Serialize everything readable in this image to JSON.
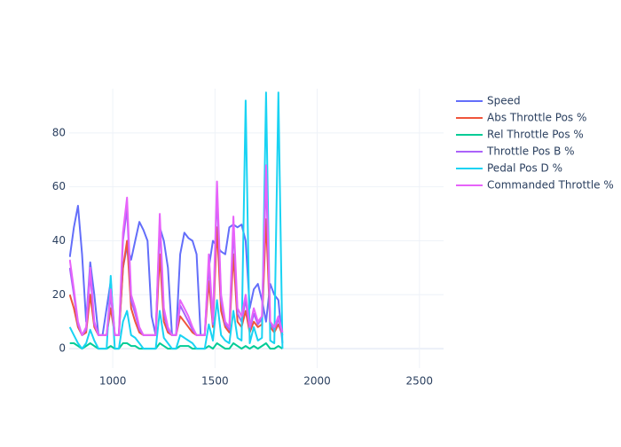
{
  "chart_data": {
    "type": "line",
    "x": [
      790,
      810,
      830,
      850,
      870,
      890,
      910,
      930,
      950,
      970,
      990,
      1010,
      1030,
      1050,
      1070,
      1090,
      1110,
      1130,
      1150,
      1170,
      1190,
      1210,
      1230,
      1250,
      1270,
      1290,
      1310,
      1330,
      1350,
      1370,
      1390,
      1410,
      1430,
      1450,
      1470,
      1490,
      1510,
      1530,
      1550,
      1570,
      1590,
      1610,
      1630,
      1650,
      1670,
      1690,
      1710,
      1730,
      1750,
      1770,
      1790,
      1810,
      1830
    ],
    "series": [
      {
        "name": "Speed",
        "color": "#636efa",
        "values": [
          34,
          45,
          53,
          35,
          10,
          32,
          20,
          5,
          5,
          15,
          25,
          5,
          5,
          30,
          38,
          33,
          40,
          47,
          44,
          40,
          12,
          5,
          45,
          40,
          30,
          5,
          5,
          35,
          43,
          41,
          40,
          35,
          5,
          5,
          30,
          40,
          38,
          36,
          35,
          45,
          46,
          45,
          46,
          40,
          15,
          22,
          24,
          18,
          10,
          24,
          20,
          18,
          2
        ]
      },
      {
        "name": "Abs Throttle Pos %",
        "color": "#ef553b",
        "values": [
          20,
          15,
          8,
          5,
          6,
          20,
          8,
          5,
          5,
          5,
          15,
          5,
          5,
          30,
          40,
          15,
          10,
          6,
          5,
          5,
          5,
          5,
          35,
          10,
          6,
          5,
          5,
          12,
          10,
          8,
          6,
          5,
          5,
          5,
          25,
          8,
          45,
          14,
          8,
          6,
          35,
          10,
          8,
          14,
          6,
          10,
          8,
          9,
          48,
          8,
          6,
          9,
          5
        ]
      },
      {
        "name": "Rel Throttle Pos %",
        "color": "#00cc96",
        "values": [
          2,
          2,
          1,
          0,
          1,
          2,
          1,
          0,
          0,
          0,
          1,
          0,
          0,
          2,
          2,
          1,
          1,
          0,
          0,
          0,
          0,
          0,
          2,
          1,
          0,
          0,
          0,
          1,
          1,
          1,
          0,
          0,
          0,
          0,
          1,
          0,
          2,
          1,
          0,
          0,
          2,
          1,
          0,
          1,
          0,
          1,
          0,
          1,
          2,
          0,
          0,
          1,
          0
        ]
      },
      {
        "name": "Throttle Pos B %",
        "color": "#ab63fa",
        "values": [
          30,
          20,
          9,
          5,
          7,
          28,
          9,
          5,
          5,
          5,
          20,
          5,
          5,
          40,
          52,
          18,
          13,
          7,
          5,
          5,
          5,
          5,
          47,
          13,
          7,
          5,
          5,
          16,
          13,
          10,
          7,
          5,
          5,
          5,
          32,
          9,
          58,
          18,
          9,
          7,
          45,
          13,
          10,
          18,
          7,
          13,
          9,
          11,
          64,
          9,
          7,
          11,
          5
        ]
      },
      {
        "name": "Pedal Pos D %",
        "color": "#19d3f3",
        "values": [
          8,
          5,
          2,
          0,
          2,
          7,
          3,
          0,
          0,
          0,
          27,
          0,
          0,
          10,
          14,
          5,
          4,
          2,
          0,
          0,
          0,
          0,
          14,
          4,
          2,
          0,
          0,
          5,
          4,
          3,
          2,
          0,
          0,
          0,
          9,
          3,
          18,
          5,
          3,
          2,
          14,
          4,
          3,
          92,
          2,
          8,
          3,
          4,
          95,
          3,
          2,
          95,
          0
        ]
      },
      {
        "name": "Commanded Throttle %",
        "color": "#e763fa",
        "values": [
          33,
          22,
          10,
          5,
          8,
          30,
          10,
          5,
          5,
          5,
          22,
          5,
          5,
          43,
          56,
          20,
          15,
          8,
          5,
          5,
          5,
          5,
          50,
          15,
          8,
          5,
          5,
          18,
          15,
          12,
          8,
          5,
          5,
          5,
          35,
          10,
          62,
          20,
          10,
          8,
          49,
          15,
          12,
          20,
          8,
          15,
          10,
          12,
          68,
          10,
          8,
          12,
          6
        ]
      }
    ],
    "xlim": [
      787,
      2618
    ],
    "xticks": [
      1000,
      1500,
      2000,
      2500
    ],
    "ylim": [
      -7.2,
      96.4
    ],
    "yticks": [
      0,
      20,
      40,
      60,
      80
    ],
    "grid": true,
    "legend": "right"
  }
}
